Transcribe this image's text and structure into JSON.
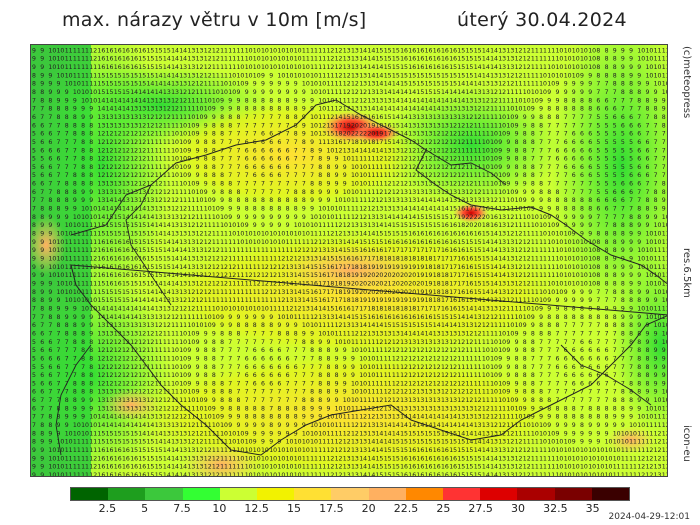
{
  "header": {
    "title": "max. nárazy větru v 10m [m/s]",
    "date": "úterý 30.04.2024"
  },
  "side_labels": {
    "credit": "(c)meteopress",
    "resolution": "res.6.5km",
    "model": "icon-eu"
  },
  "legend": {
    "labels": [
      "2.5",
      "5",
      "7.5",
      "10",
      "12.5",
      "15",
      "17.5",
      "20",
      "22.5",
      "25",
      "27.5",
      "30",
      "32.5",
      "35"
    ],
    "colors": [
      "#006400",
      "#1e9e1e",
      "#3cc83c",
      "#33ff33",
      "#ccff33",
      "#f2f200",
      "#ffe033",
      "#ffcc66",
      "#ffb060",
      "#ff8800",
      "#ff3333",
      "#dd0000",
      "#aa0000",
      "#7a0000",
      "#3a0000"
    ]
  },
  "timestamp": "2024-04-29-12:01"
}
